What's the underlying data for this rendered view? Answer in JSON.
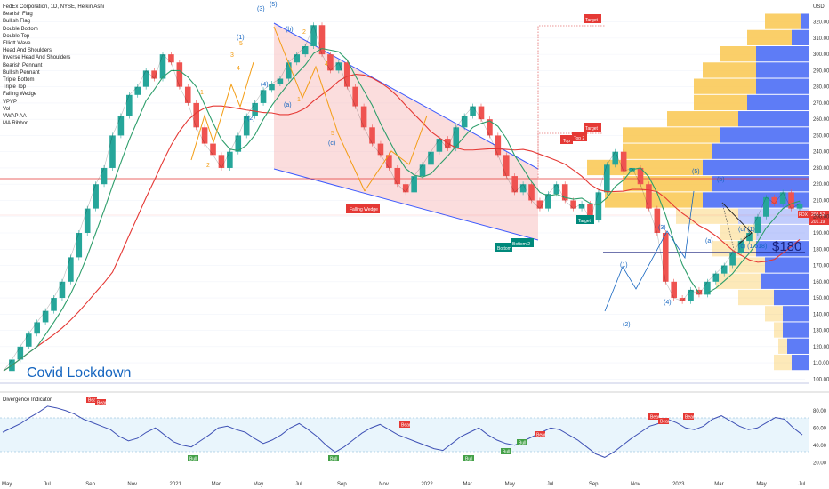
{
  "header": {
    "symbol_line": "FedEx Corporation, 1D, NYSE, Heikin Ashi",
    "currency": "USD"
  },
  "legend_items": [
    "Bearish Flag",
    "Bullish Flag",
    "Double Bottom",
    "Double Top",
    "Elliott Wave",
    "Head And Shoulders",
    "Inverse Head And Shoulders",
    "Bearish Pennant",
    "Bullish Pennant",
    "Triple Bottom",
    "Triple Top",
    "Falling Wedge",
    "VPVP",
    "Vol",
    "VWAP AA",
    "MA Ribbon"
  ],
  "annotations": {
    "covid": "Covid Lockdown",
    "price_target": "$180",
    "falling_wedge": "Falling Wedge",
    "bottom": "Bottom",
    "bottom2": "Bottom 2",
    "top": "Top",
    "top2": "Top 2",
    "target": "Target",
    "fib1": "(c) (1)",
    "fib2": "(c) (1.618)"
  },
  "price_labels": {
    "last": "203.52",
    "prev": "201.19",
    "symbol": "FDX"
  },
  "indicator": {
    "title": "Divergence Indicator",
    "bull": "Bull",
    "bear": "Bear"
  },
  "colors": {
    "up": "#26a69a",
    "down": "#ef5350",
    "ma_red": "#e53935",
    "ma_green": "#2e9e6b",
    "wedge": "#3d5afe",
    "vp_up": "#f9c74f",
    "vp_down": "#4c6ef5"
  },
  "chart_data": {
    "type": "line",
    "x_ticks": [
      "May",
      "Jul",
      "Sep",
      "Nov",
      "2021",
      "Mar",
      "May",
      "Jul",
      "Sep",
      "Nov",
      "2022",
      "Mar",
      "May",
      "Jul",
      "Sep",
      "Nov",
      "2023",
      "Mar",
      "May",
      "Jul"
    ],
    "y_ticks": [
      100,
      110,
      120,
      130,
      140,
      150,
      160,
      170,
      180,
      190,
      200,
      210,
      220,
      230,
      240,
      250,
      260,
      270,
      280,
      290,
      300,
      310,
      320
    ],
    "ylim": [
      98,
      328
    ],
    "osc_ticks": [
      80,
      60,
      40,
      20
    ],
    "osc_ylim": [
      10,
      90
    ],
    "series": [
      {
        "name": "FDX",
        "values": [
          105,
          112,
          120,
          128,
          135,
          142,
          150,
          160,
          175,
          190,
          205,
          220,
          230,
          250,
          262,
          275,
          280,
          290,
          285,
          300,
          295,
          280,
          270,
          255,
          245,
          238,
          230,
          240,
          250,
          262,
          270,
          278,
          282,
          285,
          295,
          300,
          305,
          318,
          300,
          290,
          295,
          280,
          268,
          255,
          245,
          238,
          230,
          220,
          215,
          225,
          232,
          240,
          248,
          242,
          255,
          262,
          268,
          260,
          250,
          238,
          225,
          215,
          220,
          210,
          205,
          214,
          220,
          210,
          205,
          208,
          198,
          215,
          232,
          240,
          228,
          230,
          220,
          205,
          190,
          160,
          150,
          148,
          155,
          152,
          160,
          165,
          170,
          178,
          185,
          190,
          200,
          212,
          208,
          215,
          205,
          208
        ]
      }
    ],
    "osc_values": [
      55,
      60,
      65,
      72,
      78,
      85,
      83,
      80,
      76,
      70,
      66,
      62,
      58,
      50,
      45,
      48,
      55,
      60,
      52,
      44,
      40,
      38,
      45,
      52,
      60,
      62,
      58,
      55,
      48,
      42,
      46,
      52,
      60,
      65,
      58,
      50,
      40,
      32,
      38,
      46,
      54,
      60,
      64,
      58,
      52,
      48,
      44,
      40,
      36,
      34,
      42,
      50,
      55,
      60,
      52,
      46,
      42,
      40,
      45,
      50,
      55,
      60,
      58,
      52,
      46,
      38,
      30,
      26,
      32,
      40,
      48,
      55,
      62,
      65,
      70,
      66,
      60,
      58,
      62,
      70,
      74,
      68,
      62,
      58,
      60,
      66,
      72,
      70,
      60,
      52
    ]
  }
}
